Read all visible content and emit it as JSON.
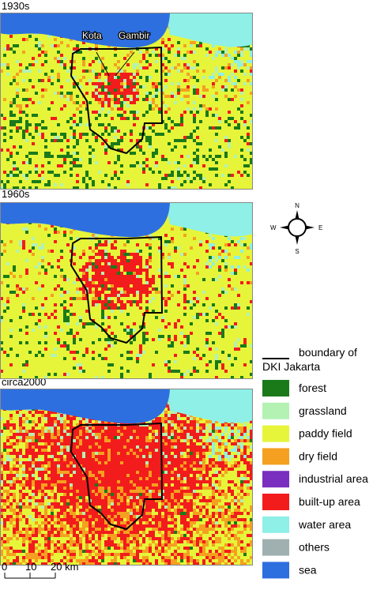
{
  "panels": [
    {
      "label": "1930s"
    },
    {
      "label": "1960s"
    },
    {
      "label": "circa2000"
    }
  ],
  "annotations": [
    "Kota",
    "Gambir"
  ],
  "compass": {
    "n": "N",
    "e": "E",
    "s": "S",
    "w": "W"
  },
  "legend": {
    "boundary": [
      "boundary of",
      "DKI Jakarta"
    ],
    "items": [
      {
        "label": "forest",
        "color": "#1a7a1a"
      },
      {
        "label": "grassland",
        "color": "#b3f2b3"
      },
      {
        "label": "paddy field",
        "color": "#e6f53a"
      },
      {
        "label": "dry field",
        "color": "#f5a020"
      },
      {
        "label": "industrial area",
        "color": "#7a2ec0"
      },
      {
        "label": "built-up area",
        "color": "#f21c1c"
      },
      {
        "label": "water area",
        "color": "#8ef0e6"
      },
      {
        "label": "others",
        "color": "#a0b0b0"
      },
      {
        "label": "sea",
        "color": "#2e6fe0"
      }
    ]
  },
  "scale": [
    "0",
    "10",
    "20 km"
  ]
}
